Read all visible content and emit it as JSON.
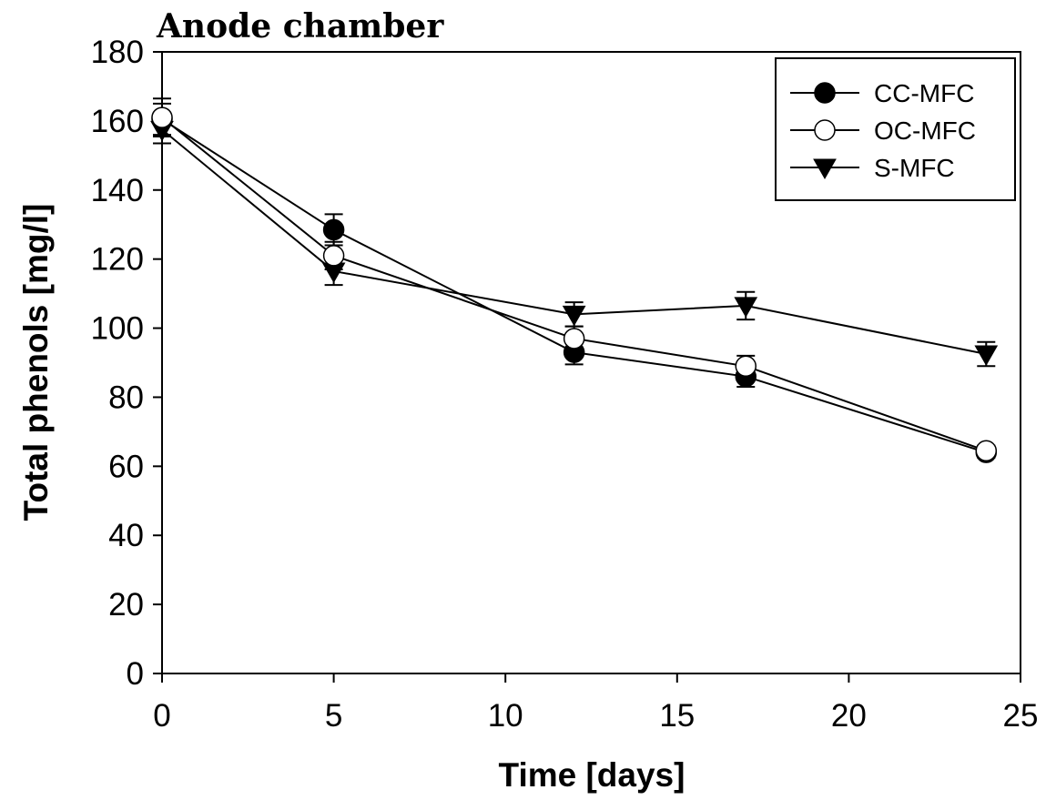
{
  "chart_data": {
    "type": "line",
    "title": "Anode chamber",
    "xlabel": "Time [days]",
    "ylabel": "Total phenols [mg/l]",
    "xlim": [
      0,
      25
    ],
    "ylim": [
      0,
      180
    ],
    "xticks": [
      0,
      5,
      10,
      15,
      20,
      25
    ],
    "yticks": [
      0,
      20,
      40,
      60,
      80,
      100,
      120,
      140,
      160,
      180
    ],
    "grid": false,
    "legend_position": "top-right",
    "x": [
      0,
      5,
      12,
      17,
      24
    ],
    "series": [
      {
        "name": "CC-MFC",
        "marker": "filled-circle",
        "values": [
          160.5,
          128.5,
          93,
          86,
          64
        ],
        "errors": [
          4.5,
          4.5,
          3.5,
          3,
          1.5
        ]
      },
      {
        "name": "OC-MFC",
        "marker": "open-circle",
        "values": [
          161,
          121,
          97,
          89,
          64.5
        ],
        "errors": [
          5.5,
          4,
          3.5,
          3,
          1.5
        ]
      },
      {
        "name": "S-MFC",
        "marker": "filled-triangle-down",
        "values": [
          157.5,
          116.5,
          104,
          106.5,
          92.5
        ],
        "errors": [
          4,
          4,
          3.5,
          4,
          3.5
        ]
      }
    ]
  }
}
